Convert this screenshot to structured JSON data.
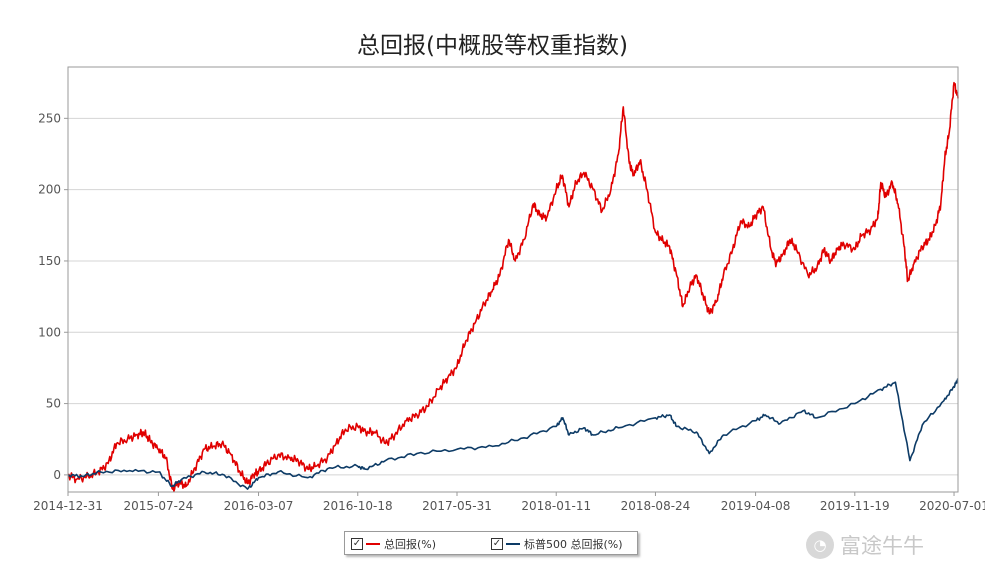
{
  "chart_data": {
    "type": "line",
    "title": "总回报(中概股等权重指数)",
    "xlabel": "",
    "ylabel": "",
    "x_ticks": [
      "2014-12-31",
      "2015-07-24",
      "2016-03-07",
      "2016-10-18",
      "2017-05-31",
      "2018-01-11",
      "2018-08-24",
      "2019-04-08",
      "2019-11-19",
      "2020-07-01"
    ],
    "x_range": [
      "2014-12-31",
      "2020-07-10"
    ],
    "y_ticks": [
      0,
      50,
      100,
      150,
      200,
      250
    ],
    "ylim": [
      -12,
      286
    ],
    "grid": "horizontal",
    "legend_position": "bottom-center",
    "series": [
      {
        "name": "总回报(%)",
        "color": "#e00000",
        "points": [
          [
            "2014-12-31",
            0
          ],
          [
            "2015-01-20",
            -3
          ],
          [
            "2015-02-15",
            -1
          ],
          [
            "2015-03-10",
            2
          ],
          [
            "2015-04-01",
            8
          ],
          [
            "2015-04-20",
            22
          ],
          [
            "2015-05-15",
            25
          ],
          [
            "2015-06-05",
            28
          ],
          [
            "2015-06-20",
            30
          ],
          [
            "2015-07-05",
            24
          ],
          [
            "2015-07-24",
            18
          ],
          [
            "2015-08-10",
            12
          ],
          [
            "2015-08-25",
            -10
          ],
          [
            "2015-09-10",
            -5
          ],
          [
            "2015-09-25",
            -8
          ],
          [
            "2015-10-15",
            5
          ],
          [
            "2015-11-05",
            18
          ],
          [
            "2015-11-25",
            20
          ],
          [
            "2015-12-15",
            22
          ],
          [
            "2016-01-05",
            14
          ],
          [
            "2016-01-25",
            2
          ],
          [
            "2016-02-11",
            -6
          ],
          [
            "2016-02-25",
            0
          ],
          [
            "2016-03-07",
            2
          ],
          [
            "2016-03-25",
            8
          ],
          [
            "2016-04-20",
            14
          ],
          [
            "2016-05-15",
            12
          ],
          [
            "2016-06-05",
            10
          ],
          [
            "2016-06-27",
            4
          ],
          [
            "2016-07-15",
            6
          ],
          [
            "2016-08-10",
            12
          ],
          [
            "2016-08-30",
            22
          ],
          [
            "2016-09-20",
            32
          ],
          [
            "2016-10-18",
            34
          ],
          [
            "2016-11-05",
            30
          ],
          [
            "2016-11-25",
            30
          ],
          [
            "2016-12-20",
            22
          ],
          [
            "2017-01-10",
            28
          ],
          [
            "2017-02-05",
            38
          ],
          [
            "2017-03-01",
            42
          ],
          [
            "2017-03-25",
            48
          ],
          [
            "2017-04-20",
            60
          ],
          [
            "2017-05-10",
            68
          ],
          [
            "2017-05-31",
            76
          ],
          [
            "2017-06-20",
            94
          ],
          [
            "2017-07-10",
            106
          ],
          [
            "2017-08-01",
            120
          ],
          [
            "2017-08-20",
            130
          ],
          [
            "2017-09-05",
            140
          ],
          [
            "2017-09-25",
            165
          ],
          [
            "2017-10-10",
            150
          ],
          [
            "2017-10-30",
            165
          ],
          [
            "2017-11-20",
            190
          ],
          [
            "2017-12-05",
            182
          ],
          [
            "2017-12-20",
            180
          ],
          [
            "2018-01-11",
            200
          ],
          [
            "2018-01-25",
            210
          ],
          [
            "2018-02-09",
            188
          ],
          [
            "2018-02-25",
            205
          ],
          [
            "2018-03-15",
            212
          ],
          [
            "2018-04-05",
            200
          ],
          [
            "2018-04-25",
            185
          ],
          [
            "2018-05-15",
            200
          ],
          [
            "2018-06-01",
            225
          ],
          [
            "2018-06-12",
            258
          ],
          [
            "2018-06-25",
            220
          ],
          [
            "2018-07-05",
            210
          ],
          [
            "2018-07-20",
            220
          ],
          [
            "2018-08-05",
            200
          ],
          [
            "2018-08-24",
            170
          ],
          [
            "2018-09-10",
            164
          ],
          [
            "2018-09-25",
            160
          ],
          [
            "2018-10-11",
            140
          ],
          [
            "2018-10-25",
            118
          ],
          [
            "2018-11-10",
            132
          ],
          [
            "2018-11-25",
            140
          ],
          [
            "2018-12-10",
            126
          ],
          [
            "2018-12-24",
            113
          ],
          [
            "2019-01-10",
            122
          ],
          [
            "2019-01-25",
            140
          ],
          [
            "2019-02-15",
            158
          ],
          [
            "2019-03-05",
            178
          ],
          [
            "2019-03-25",
            174
          ],
          [
            "2019-04-08",
            182
          ],
          [
            "2019-04-25",
            188
          ],
          [
            "2019-05-13",
            158
          ],
          [
            "2019-05-25",
            148
          ],
          [
            "2019-06-10",
            155
          ],
          [
            "2019-06-25",
            165
          ],
          [
            "2019-07-10",
            158
          ],
          [
            "2019-08-05",
            140
          ],
          [
            "2019-08-25",
            145
          ],
          [
            "2019-09-10",
            158
          ],
          [
            "2019-09-25",
            150
          ],
          [
            "2019-10-10",
            158
          ],
          [
            "2019-10-25",
            162
          ],
          [
            "2019-11-19",
            158
          ],
          [
            "2019-12-05",
            168
          ],
          [
            "2019-12-25",
            172
          ],
          [
            "2020-01-10",
            180
          ],
          [
            "2020-01-17",
            205
          ],
          [
            "2020-01-28",
            195
          ],
          [
            "2020-02-12",
            205
          ],
          [
            "2020-02-25",
            190
          ],
          [
            "2020-03-10",
            160
          ],
          [
            "2020-03-18",
            136
          ],
          [
            "2020-04-01",
            148
          ],
          [
            "2020-04-20",
            160
          ],
          [
            "2020-05-05",
            165
          ],
          [
            "2020-05-20",
            175
          ],
          [
            "2020-06-01",
            190
          ],
          [
            "2020-06-10",
            222
          ],
          [
            "2020-06-20",
            240
          ],
          [
            "2020-07-01",
            275
          ],
          [
            "2020-07-10",
            264
          ]
        ]
      },
      {
        "name": "标普500 总回报(%)",
        "color": "#0d3b66",
        "points": [
          [
            "2014-12-31",
            0
          ],
          [
            "2015-02-01",
            -1
          ],
          [
            "2015-03-15",
            2
          ],
          [
            "2015-05-20",
            3
          ],
          [
            "2015-07-24",
            2
          ],
          [
            "2015-08-24",
            -8
          ],
          [
            "2015-09-15",
            -3
          ],
          [
            "2015-11-05",
            2
          ],
          [
            "2015-12-20",
            0
          ],
          [
            "2016-02-11",
            -10
          ],
          [
            "2016-03-07",
            -2
          ],
          [
            "2016-04-20",
            2
          ],
          [
            "2016-06-27",
            -2
          ],
          [
            "2016-08-15",
            5
          ],
          [
            "2016-10-18",
            6
          ],
          [
            "2016-11-05",
            4
          ],
          [
            "2016-12-20",
            10
          ],
          [
            "2017-03-01",
            15
          ],
          [
            "2017-05-31",
            18
          ],
          [
            "2017-08-20",
            20
          ],
          [
            "2017-10-30",
            26
          ],
          [
            "2018-01-11",
            34
          ],
          [
            "2018-01-26",
            40
          ],
          [
            "2018-02-09",
            28
          ],
          [
            "2018-03-15",
            33
          ],
          [
            "2018-04-05",
            28
          ],
          [
            "2018-06-01",
            33
          ],
          [
            "2018-08-24",
            40
          ],
          [
            "2018-09-25",
            42
          ],
          [
            "2018-10-11",
            34
          ],
          [
            "2018-11-25",
            30
          ],
          [
            "2018-12-24",
            15
          ],
          [
            "2019-01-25",
            28
          ],
          [
            "2019-04-08",
            38
          ],
          [
            "2019-04-30",
            42
          ],
          [
            "2019-06-03",
            36
          ],
          [
            "2019-07-25",
            45
          ],
          [
            "2019-08-25",
            40
          ],
          [
            "2019-11-19",
            50
          ],
          [
            "2020-01-17",
            60
          ],
          [
            "2020-02-19",
            65
          ],
          [
            "2020-03-23",
            10
          ],
          [
            "2020-04-20",
            35
          ],
          [
            "2020-06-08",
            52
          ],
          [
            "2020-07-01",
            62
          ],
          [
            "2020-07-10",
            67
          ]
        ]
      }
    ]
  }
}
